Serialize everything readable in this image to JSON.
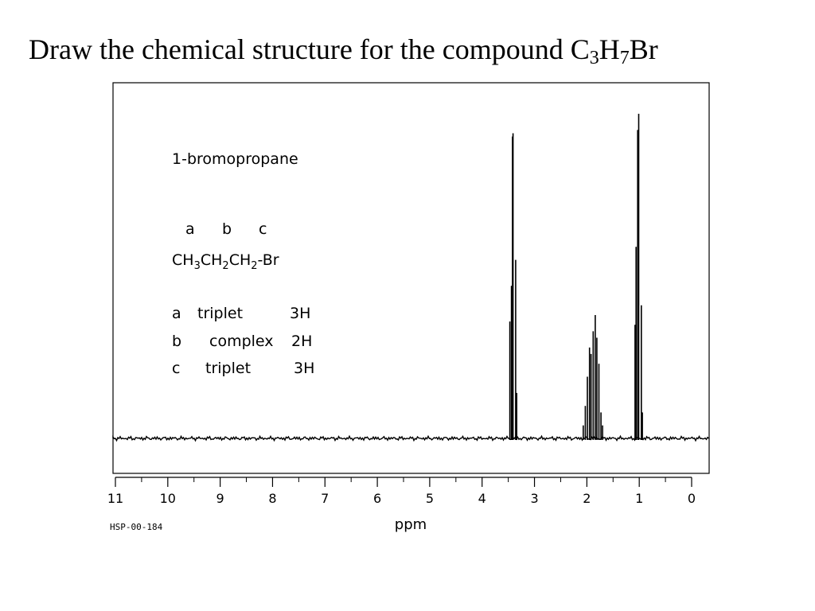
{
  "title": {
    "text_1": "Draw the chemical structure for the compound C",
    "sub_1": "3",
    "text_2": "H",
    "sub_2": "7",
    "text_3": "Br"
  },
  "annotation": {
    "compound_name": "1-bromopropane",
    "position_letters": [
      "a",
      "b",
      "c"
    ],
    "formula": [
      {
        "text": "CH",
        "sub": "3"
      },
      {
        "text": "CH",
        "sub": "2"
      },
      {
        "text": "CH",
        "sub": "2"
      },
      {
        "text": "-Br",
        "sub": ""
      }
    ],
    "assignments": [
      {
        "label": "a",
        "multiplicity": "triplet",
        "protons": "3H"
      },
      {
        "label": "b",
        "multiplicity": "complex",
        "protons": "2H"
      },
      {
        "label": "c",
        "multiplicity": "triplet",
        "protons": "3H"
      }
    ]
  },
  "chart_data": {
    "type": "line",
    "xlabel": "ppm",
    "x_reversed": true,
    "xlim": [
      11,
      0
    ],
    "ticks": [
      11,
      10,
      9,
      8,
      7,
      6,
      5,
      4,
      3,
      2,
      1,
      0
    ],
    "source_code": "HSP-00-184",
    "grid": false,
    "series": [
      {
        "peaks": [
          {
            "ppm": 3.47,
            "height": 0.36
          },
          {
            "ppm": 3.44,
            "height": 0.47
          },
          {
            "ppm": 3.42,
            "height": 0.93
          },
          {
            "ppm": 3.41,
            "height": 0.94
          },
          {
            "ppm": 3.36,
            "height": 0.55
          },
          {
            "ppm": 3.34,
            "height": 0.14
          },
          {
            "ppm": 2.07,
            "height": 0.04
          },
          {
            "ppm": 2.03,
            "height": 0.1
          },
          {
            "ppm": 1.99,
            "height": 0.19
          },
          {
            "ppm": 1.95,
            "height": 0.28
          },
          {
            "ppm": 1.92,
            "height": 0.26
          },
          {
            "ppm": 1.88,
            "height": 0.33
          },
          {
            "ppm": 1.84,
            "height": 0.38
          },
          {
            "ppm": 1.81,
            "height": 0.31
          },
          {
            "ppm": 1.77,
            "height": 0.23
          },
          {
            "ppm": 1.73,
            "height": 0.08
          },
          {
            "ppm": 1.7,
            "height": 0.04
          },
          {
            "ppm": 1.08,
            "height": 0.35
          },
          {
            "ppm": 1.06,
            "height": 0.59
          },
          {
            "ppm": 1.03,
            "height": 0.95
          },
          {
            "ppm": 1.01,
            "height": 1.0
          },
          {
            "ppm": 0.96,
            "height": 0.41
          },
          {
            "ppm": 0.94,
            "height": 0.08
          }
        ]
      }
    ]
  }
}
